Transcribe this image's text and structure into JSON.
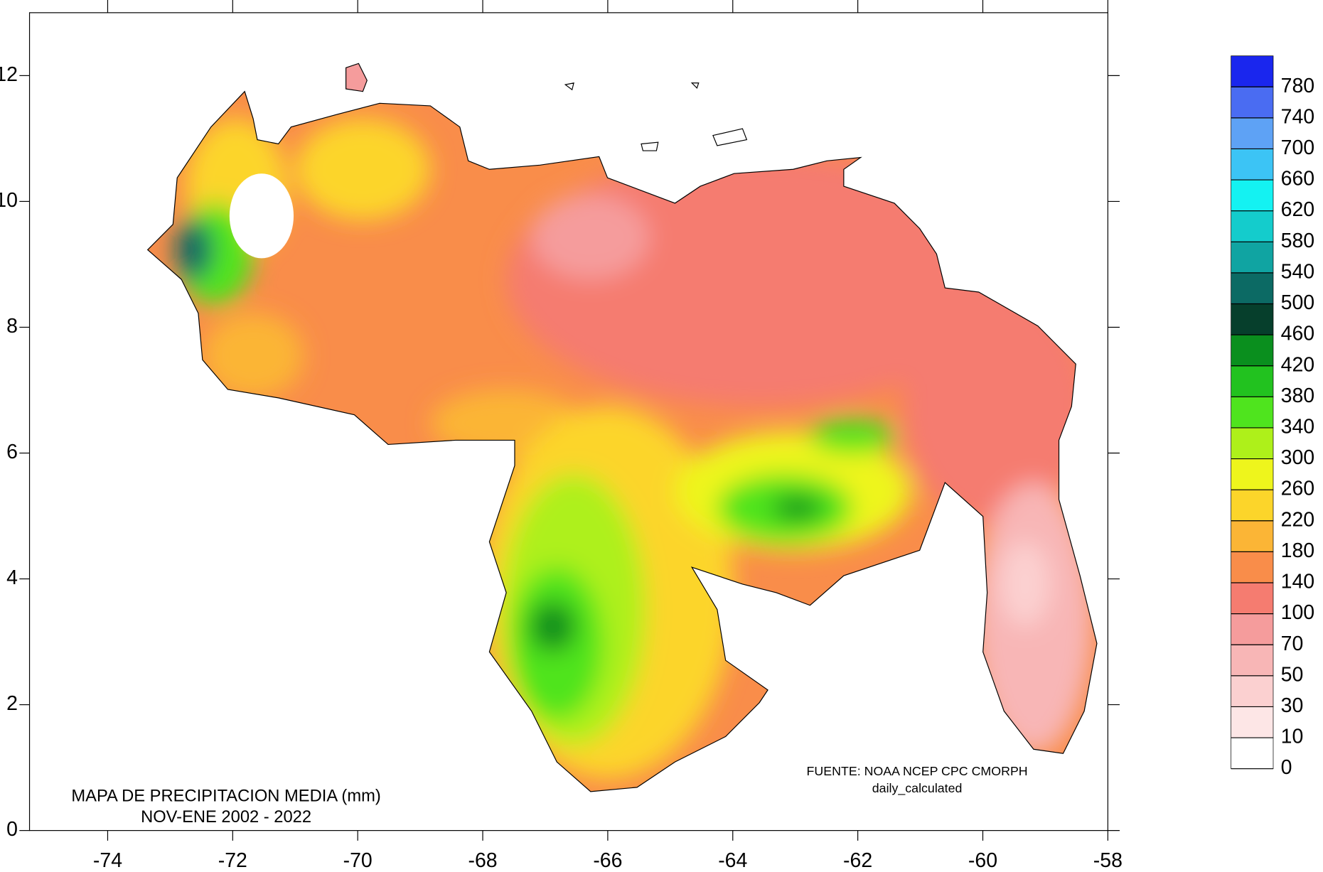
{
  "chart_data": {
    "type": "map",
    "title": "MAPA DE PRECIPITACION MEDIA (mm)",
    "subtitle": "NOV-ENE 2002 - 2022",
    "annotations": [
      "FUENTE: NOAA NCEP CPC CMORPH",
      "daily_calculated"
    ],
    "xlim": [
      -75.25,
      -58
    ],
    "ylim": [
      0,
      13
    ],
    "xticks": [
      -74,
      -72,
      -70,
      -68,
      -66,
      -64,
      -62,
      -60,
      -58
    ],
    "yticks": [
      0,
      2,
      4,
      6,
      8,
      10,
      12
    ],
    "legend": {
      "levels": [
        0,
        10,
        30,
        50,
        70,
        100,
        140,
        180,
        220,
        260,
        300,
        340,
        380,
        420,
        460,
        500,
        540,
        580,
        620,
        660,
        700,
        740,
        780
      ],
      "colors": [
        "#ffffff",
        "#fde6e6",
        "#fbd0d0",
        "#f8b6b6",
        "#f59c9c",
        "#f57c70",
        "#f98d4a",
        "#fbb536",
        "#fcd52a",
        "#eef51c",
        "#aef01a",
        "#4fe41e",
        "#22c21f",
        "#0a8f1e",
        "#063f2c",
        "#0c6a64",
        "#10a4a2",
        "#14cccc",
        "#14f2f2",
        "#3cc4f5",
        "#5ea2f5",
        "#4a6cf2",
        "#1a26ee"
      ]
    }
  }
}
